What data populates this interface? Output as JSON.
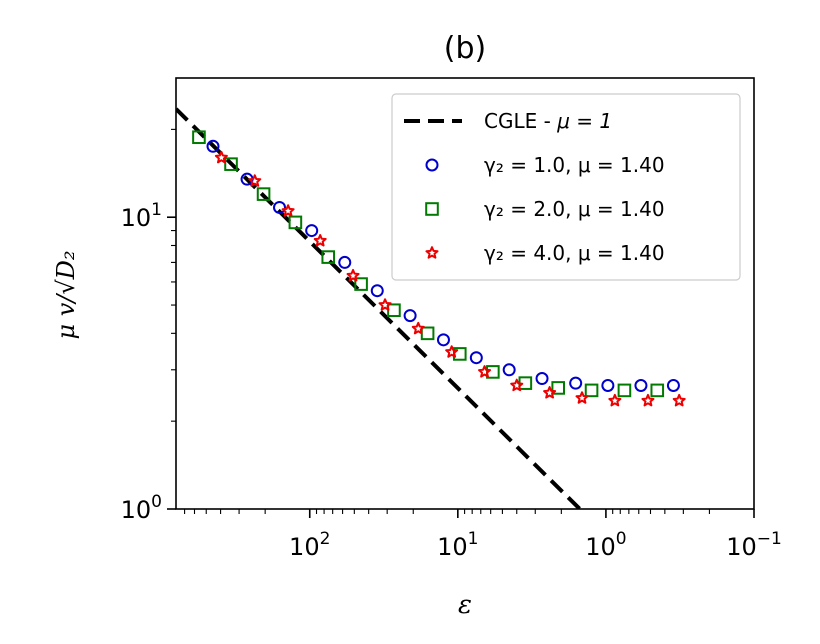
{
  "chart_data": {
    "type": "scatter",
    "title": "(b)",
    "xlabel": "ε",
    "ylabel": "μ v/√D₂",
    "x_scale": "log",
    "y_scale": "log",
    "x_reversed": true,
    "xlim": [
      800,
      0.1
    ],
    "ylim": [
      1,
      30
    ],
    "x_major_ticks": [
      {
        "value": 100,
        "label": "10",
        "sup": "2"
      },
      {
        "value": 10,
        "label": "10",
        "sup": "1"
      },
      {
        "value": 1,
        "label": "10",
        "sup": "0"
      },
      {
        "value": 0.1,
        "label": "10",
        "sup": "−1"
      }
    ],
    "y_major_ticks": [
      {
        "value": 1,
        "label": "10",
        "sup": "0"
      },
      {
        "value": 10,
        "label": "10",
        "sup": "1"
      }
    ],
    "legend_position": "top-right",
    "series": [
      {
        "name": "CGLE - μ = 1",
        "legend_label": "CGLE - ",
        "legend_math": "μ = 1",
        "kind": "line",
        "color": "#000000",
        "style": "dashed",
        "x": [
          800,
          1.5
        ],
        "y": [
          23.5,
          1.0
        ]
      },
      {
        "name": "γ2 = 1.0, μ = 1.40",
        "legend_label": "γ₂ = 1.0, μ = 1.40",
        "kind": "marker",
        "marker": "circle",
        "color": "#0000cc",
        "x": [
          450,
          265,
          160,
          97,
          58,
          35,
          21,
          12.5,
          7.5,
          4.5,
          2.7,
          1.6,
          0.97,
          0.58,
          0.35
        ],
        "y": [
          17.5,
          13.5,
          10.8,
          9.0,
          7.0,
          5.6,
          4.6,
          3.8,
          3.3,
          3.0,
          2.8,
          2.7,
          2.65,
          2.65,
          2.65
        ]
      },
      {
        "name": "γ2 = 2.0, μ = 1.40",
        "legend_label": "γ₂ = 2.0, μ = 1.40",
        "kind": "marker",
        "marker": "square",
        "color": "#007a00",
        "x": [
          560,
          340,
          205,
          125,
          75,
          45,
          27,
          16,
          9.7,
          5.8,
          3.5,
          2.1,
          1.25,
          0.75,
          0.45
        ],
        "y": [
          18.8,
          15.2,
          12.0,
          9.6,
          7.3,
          5.9,
          4.8,
          4.0,
          3.4,
          2.95,
          2.7,
          2.6,
          2.55,
          2.55,
          2.55
        ]
      },
      {
        "name": "γ2 = 4.0, μ = 1.40",
        "legend_label": "γ₂ = 4.0, μ = 1.40",
        "kind": "marker",
        "marker": "star",
        "color": "#ee0000",
        "x": [
          395,
          235,
          140,
          85,
          51,
          31,
          18.5,
          11,
          6.6,
          4,
          2.4,
          1.45,
          0.87,
          0.52,
          0.32
        ],
        "y": [
          16.0,
          13.3,
          10.5,
          8.3,
          6.3,
          5.0,
          4.15,
          3.45,
          2.95,
          2.65,
          2.5,
          2.4,
          2.35,
          2.35,
          2.35
        ]
      }
    ]
  }
}
